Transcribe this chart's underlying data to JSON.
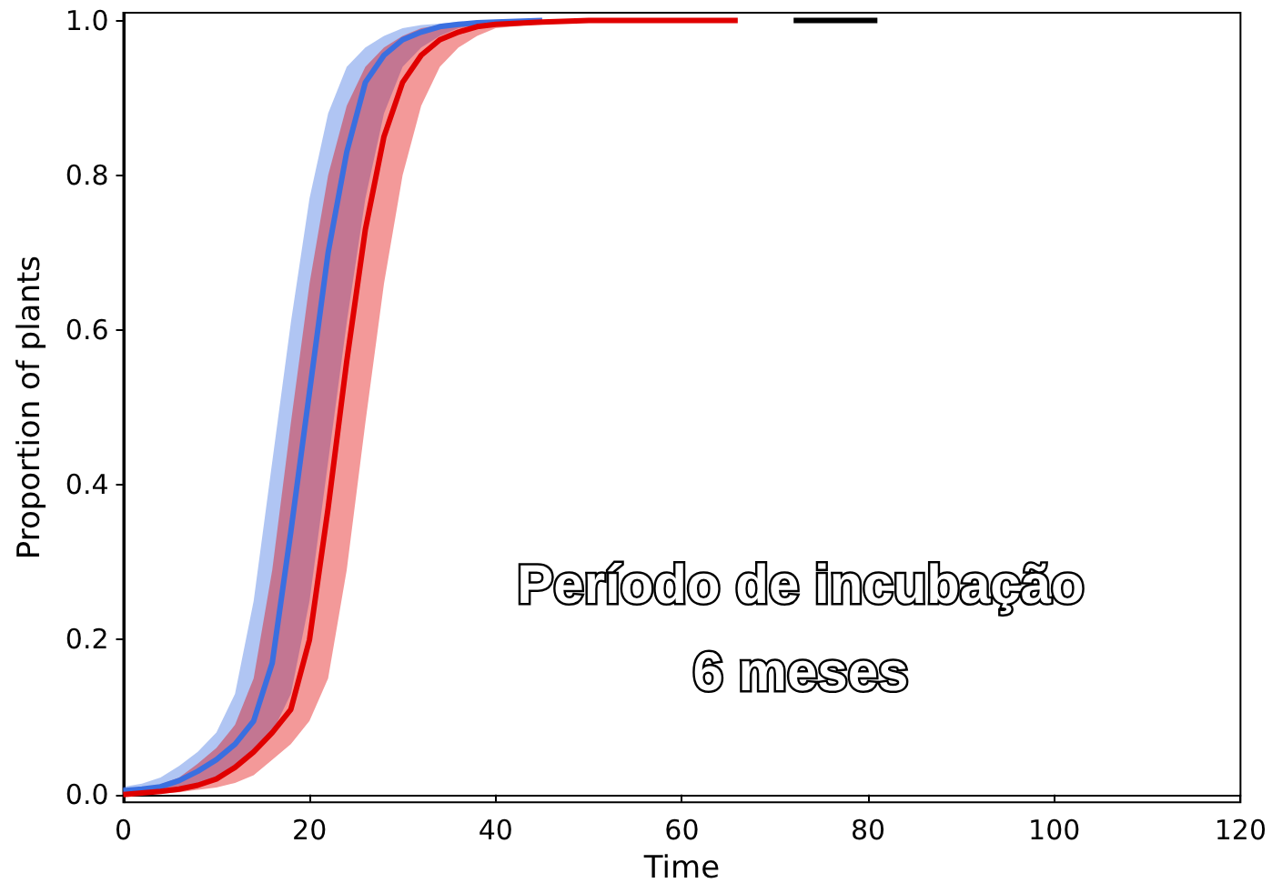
{
  "chart_data": {
    "type": "line",
    "xlabel": "Time",
    "ylabel": "Proportion of plants",
    "series": [
      {
        "color": "#3a6fe0",
        "x": [
          0,
          2,
          4,
          6,
          8,
          10,
          12,
          14,
          16,
          18,
          20,
          22,
          24,
          26,
          28,
          30,
          32,
          34,
          36,
          38,
          40,
          45
        ],
        "values": [
          0.005,
          0.007,
          0.01,
          0.018,
          0.03,
          0.045,
          0.065,
          0.095,
          0.17,
          0.34,
          0.52,
          0.7,
          0.83,
          0.92,
          0.955,
          0.975,
          0.985,
          0.992,
          0.995,
          0.997,
          0.998,
          1
        ],
        "lower": [
          0,
          0.003,
          0.006,
          0.009,
          0.014,
          0.022,
          0.037,
          0.055,
          0.08,
          0.13,
          0.25,
          0.43,
          0.61,
          0.77,
          0.88,
          0.94,
          0.965,
          0.98,
          0.99,
          0.994,
          0.996,
          0.999
        ],
        "upper": [
          0.01,
          0.014,
          0.022,
          0.037,
          0.055,
          0.08,
          0.13,
          0.25,
          0.43,
          0.61,
          0.77,
          0.88,
          0.94,
          0.965,
          0.98,
          0.99,
          0.994,
          0.996,
          0.998,
          0.999,
          1,
          1
        ]
      },
      {
        "color": "#e00000",
        "x": [
          0,
          2,
          4,
          6,
          8,
          10,
          12,
          14,
          16,
          18,
          20,
          22,
          24,
          26,
          28,
          30,
          32,
          34,
          36,
          38,
          40,
          45,
          50,
          55,
          60,
          66
        ],
        "values": [
          0,
          0.002,
          0.004,
          0.007,
          0.012,
          0.02,
          0.035,
          0.055,
          0.08,
          0.11,
          0.2,
          0.37,
          0.56,
          0.73,
          0.85,
          0.92,
          0.955,
          0.975,
          0.985,
          0.992,
          0.995,
          0.998,
          1,
          1,
          1,
          1
        ],
        "lower": [
          0,
          0,
          0.001,
          0.003,
          0.006,
          0.009,
          0.015,
          0.025,
          0.045,
          0.065,
          0.095,
          0.15,
          0.29,
          0.48,
          0.66,
          0.8,
          0.89,
          0.94,
          0.965,
          0.98,
          0.99,
          0.996,
          0.999,
          1,
          1,
          1
        ],
        "upper": [
          0.005,
          0.008,
          0.013,
          0.022,
          0.04,
          0.06,
          0.09,
          0.15,
          0.29,
          0.48,
          0.66,
          0.8,
          0.89,
          0.94,
          0.965,
          0.98,
          0.99,
          0.994,
          0.996,
          0.998,
          0.999,
          1,
          1,
          1,
          1,
          1
        ]
      },
      {
        "color": "#000000",
        "x": [
          72,
          81
        ],
        "values": [
          1,
          1
        ]
      }
    ],
    "xlim": [
      0,
      120
    ],
    "ylim": [
      -0.01,
      1.01
    ],
    "xticks": [
      0,
      20,
      40,
      60,
      80,
      100,
      120
    ],
    "yticks": [
      {
        "value": 0,
        "label": "0.0"
      },
      {
        "value": 0.2,
        "label": "0.2"
      },
      {
        "value": 0.4,
        "label": "0.4"
      },
      {
        "value": 0.6,
        "label": "0.6"
      },
      {
        "value": 0.8,
        "label": "0.8"
      },
      {
        "value": 1,
        "label": "1.0"
      }
    ],
    "grid": false,
    "marker": "none",
    "line_style": "solid",
    "annotations": [
      "Período de incubação",
      "6 meses"
    ]
  }
}
